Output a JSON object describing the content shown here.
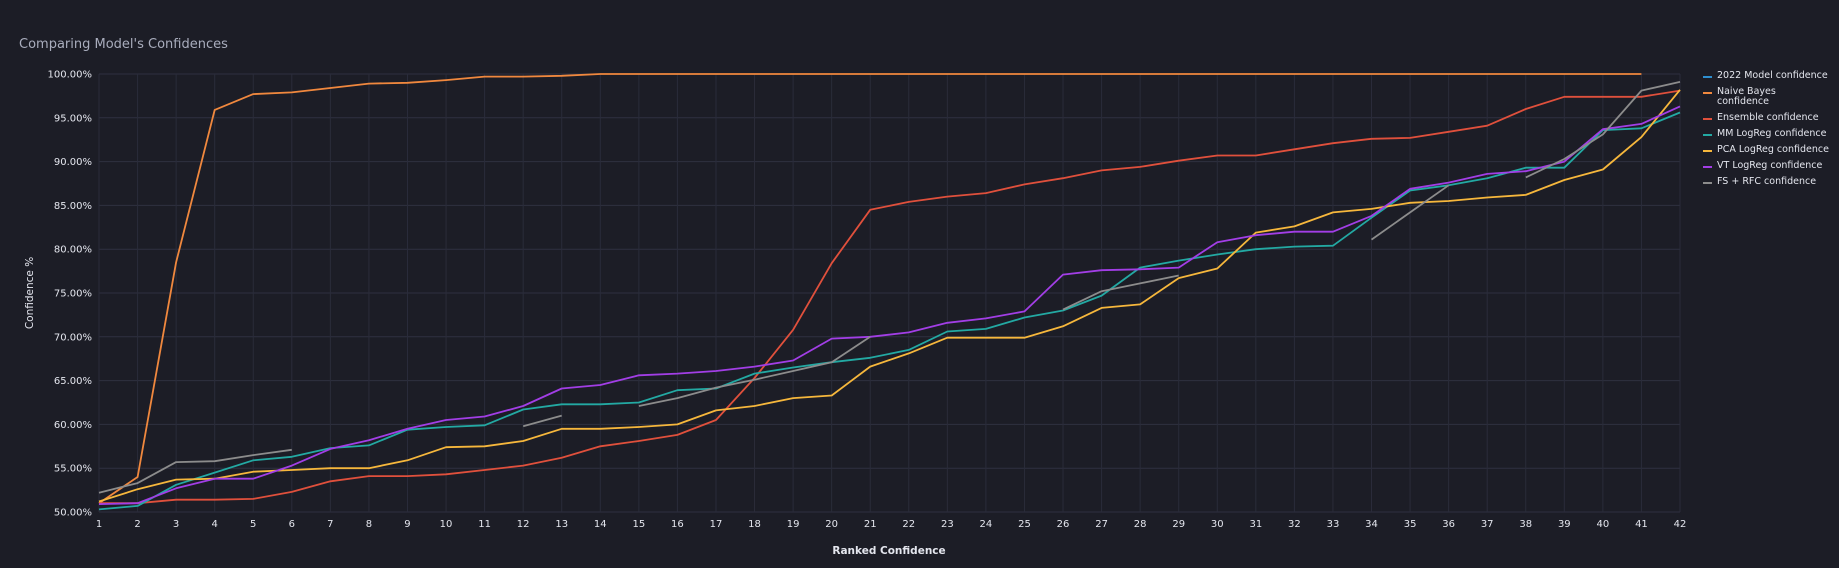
{
  "header": {
    "title": "Comparing Model's Confidences"
  },
  "chart_data": {
    "type": "line",
    "title": "Comparing Model's Confidences",
    "xlabel": "Ranked Confidence",
    "ylabel": "Confidence %",
    "xlim": [
      1,
      42
    ],
    "ylim": [
      50,
      100
    ],
    "grid": true,
    "legend_position": "right",
    "x": [
      1,
      2,
      3,
      4,
      5,
      6,
      7,
      8,
      9,
      10,
      11,
      12,
      13,
      14,
      15,
      16,
      17,
      18,
      19,
      20,
      21,
      22,
      23,
      24,
      25,
      26,
      27,
      28,
      29,
      30,
      31,
      32,
      33,
      34,
      35,
      36,
      37,
      38,
      39,
      40,
      41,
      42
    ],
    "x_ticks": [
      "1",
      "2",
      "3",
      "4",
      "5",
      "6",
      "7",
      "8",
      "9",
      "10",
      "11",
      "12",
      "13",
      "14",
      "15",
      "16",
      "17",
      "18",
      "19",
      "20",
      "21",
      "22",
      "23",
      "24",
      "25",
      "26",
      "27",
      "28",
      "29",
      "30",
      "31",
      "32",
      "33",
      "34",
      "35",
      "36",
      "37",
      "38",
      "39",
      "40",
      "41",
      "42"
    ],
    "y_ticks": [
      "50.00%",
      "55.00%",
      "60.00%",
      "65.00%",
      "70.00%",
      "75.00%",
      "80.00%",
      "85.00%",
      "90.00%",
      "95.00%",
      "100.00%"
    ],
    "series": [
      {
        "name": "2022 Model confidence",
        "color": "#2e8fd0",
        "values": [
          null,
          null,
          null,
          null,
          null,
          null,
          null,
          null,
          null,
          null,
          null,
          null,
          null,
          null,
          null,
          null,
          null,
          null,
          null,
          null,
          null,
          null,
          null,
          null,
          null,
          null,
          null,
          null,
          null,
          null,
          null,
          null,
          null,
          null,
          null,
          null,
          null,
          null,
          null,
          null,
          null,
          null
        ]
      },
      {
        "name": "Naive Bayes confidence",
        "color": "#f0883e",
        "values": [
          51.0,
          54.0,
          78.5,
          95.9,
          97.7,
          97.9,
          98.4,
          98.9,
          99.0,
          99.3,
          99.7,
          99.7,
          99.8,
          100,
          100,
          100,
          100,
          100,
          100,
          100,
          100,
          100,
          100,
          100,
          100,
          100,
          100,
          100,
          100,
          100,
          100,
          100,
          100,
          100,
          100,
          100,
          100,
          100,
          100,
          100,
          100,
          null
        ]
      },
      {
        "name": "Ensemble confidence",
        "color": "#e0503c",
        "values": [
          51.0,
          51.0,
          51.4,
          51.4,
          51.5,
          52.3,
          53.5,
          54.1,
          54.1,
          54.3,
          54.8,
          55.3,
          56.2,
          57.5,
          58.1,
          58.8,
          60.5,
          65.3,
          70.8,
          78.4,
          84.5,
          85.4,
          86.0,
          86.4,
          87.4,
          88.1,
          89.0,
          89.4,
          90.1,
          90.7,
          90.7,
          91.4,
          92.1,
          92.6,
          92.7,
          93.4,
          94.1,
          96.0,
          97.4,
          97.4,
          97.4,
          98.1
        ]
      },
      {
        "name": "MM LogReg confidence",
        "color": "#23a9a3",
        "values": [
          50.3,
          50.7,
          53.1,
          54.5,
          55.9,
          56.3,
          57.3,
          57.6,
          59.4,
          59.7,
          59.9,
          61.7,
          62.3,
          62.3,
          62.5,
          63.9,
          64.1,
          65.8,
          66.5,
          67.1,
          67.6,
          68.5,
          70.6,
          70.9,
          72.2,
          73.0,
          74.7,
          77.9,
          78.7,
          79.4,
          80.0,
          80.3,
          80.4,
          83.6,
          86.7,
          87.3,
          88.1,
          89.3,
          89.3,
          93.6,
          93.8,
          95.6
        ]
      },
      {
        "name": "PCA LogReg confidence",
        "color": "#f6b73c",
        "values": [
          51.2,
          52.6,
          53.7,
          53.8,
          54.6,
          54.8,
          55.0,
          55.0,
          55.9,
          57.4,
          57.5,
          58.1,
          59.5,
          59.5,
          59.7,
          60.0,
          61.6,
          62.1,
          63.0,
          63.3,
          66.6,
          68.1,
          69.9,
          69.9,
          69.9,
          71.2,
          73.3,
          73.7,
          76.7,
          77.8,
          81.9,
          82.6,
          84.2,
          84.6,
          85.3,
          85.5,
          85.9,
          86.2,
          87.9,
          89.1,
          92.8,
          98.2
        ]
      },
      {
        "name": "VT LogReg confidence",
        "color": "#a23ee6",
        "values": [
          50.9,
          51.0,
          52.7,
          53.8,
          53.8,
          55.3,
          57.2,
          58.2,
          59.5,
          60.5,
          60.9,
          62.1,
          64.1,
          64.5,
          65.6,
          65.8,
          66.1,
          66.6,
          67.3,
          69.8,
          70.0,
          70.5,
          71.6,
          72.1,
          72.9,
          77.1,
          77.6,
          77.7,
          77.9,
          80.8,
          81.6,
          82.0,
          82.0,
          83.8,
          86.9,
          87.6,
          88.6,
          88.9,
          90.0,
          93.7,
          94.3,
          96.3
        ]
      },
      {
        "name": "FS + RFC confidence",
        "color": "#8c8c8c",
        "values": [
          52.2,
          53.3,
          55.7,
          55.8,
          56.5,
          57.1,
          null,
          null,
          null,
          null,
          null,
          59.8,
          61.0,
          null,
          62.1,
          63.0,
          64.2,
          65.1,
          66.1,
          67.1,
          70.0,
          null,
          null,
          null,
          null,
          73.1,
          75.2,
          76.1,
          77.0,
          null,
          null,
          null,
          null,
          81.1,
          84.2,
          87.3,
          null,
          88.2,
          90.3,
          93.1,
          98.1,
          99.1
        ]
      }
    ]
  }
}
